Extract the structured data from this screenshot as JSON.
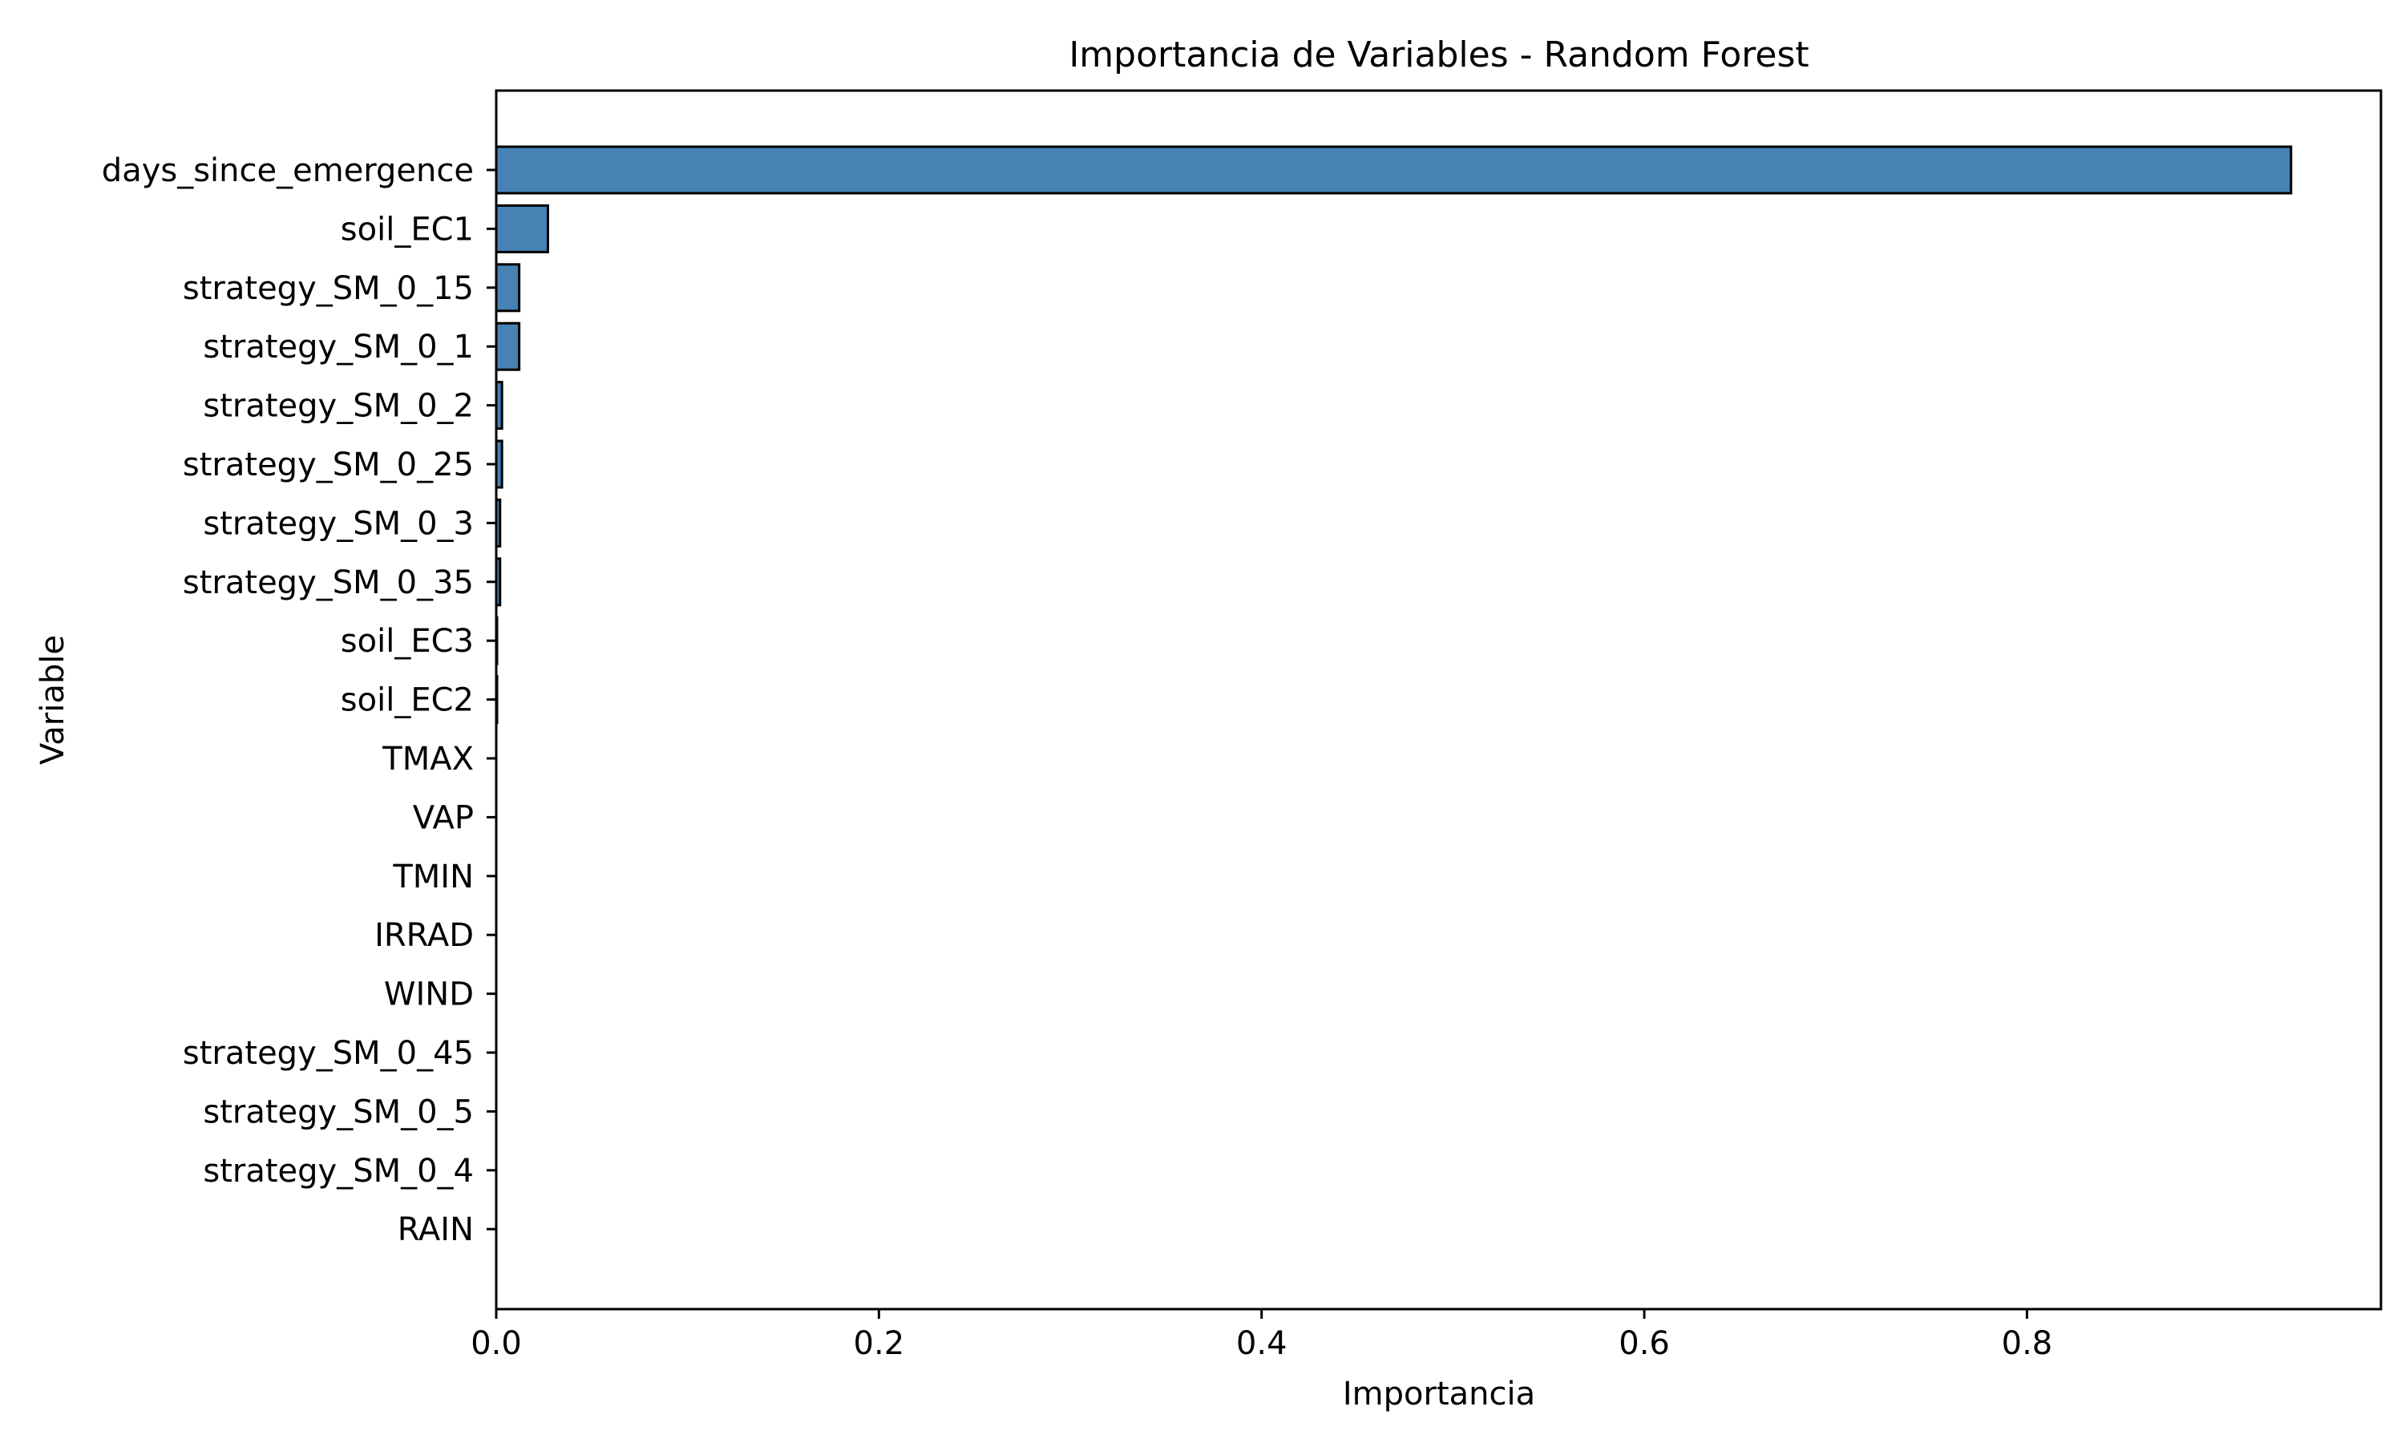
{
  "chart_data": {
    "type": "bar",
    "orientation": "horizontal",
    "title": "Importancia de Variables - Random Forest",
    "xlabel": "Importancia",
    "ylabel": "Variable",
    "xlim": [
      0,
      0.985
    ],
    "xticks": [
      {
        "value": 0.0,
        "label": "0.0"
      },
      {
        "value": 0.2,
        "label": "0.2"
      },
      {
        "value": 0.4,
        "label": "0.4"
      },
      {
        "value": 0.6,
        "label": "0.6"
      },
      {
        "value": 0.8,
        "label": "0.8"
      }
    ],
    "categories": [
      "days_since_emergence",
      "soil_EC1",
      "strategy_SM_0_15",
      "strategy_SM_0_1",
      "strategy_SM_0_2",
      "strategy_SM_0_25",
      "strategy_SM_0_3",
      "strategy_SM_0_35",
      "soil_EC3",
      "soil_EC2",
      "TMAX",
      "VAP",
      "TMIN",
      "IRRAD",
      "WIND",
      "strategy_SM_0_45",
      "strategy_SM_0_5",
      "strategy_SM_0_4",
      "RAIN"
    ],
    "values": [
      0.938,
      0.027,
      0.012,
      0.012,
      0.003,
      0.003,
      0.002,
      0.002,
      0.0002,
      0.0002,
      0,
      0,
      0,
      0,
      0,
      0,
      0,
      0,
      0
    ],
    "bar_color": "#4682b4",
    "edge_color": "#000000",
    "grid": false,
    "legend": false
  }
}
